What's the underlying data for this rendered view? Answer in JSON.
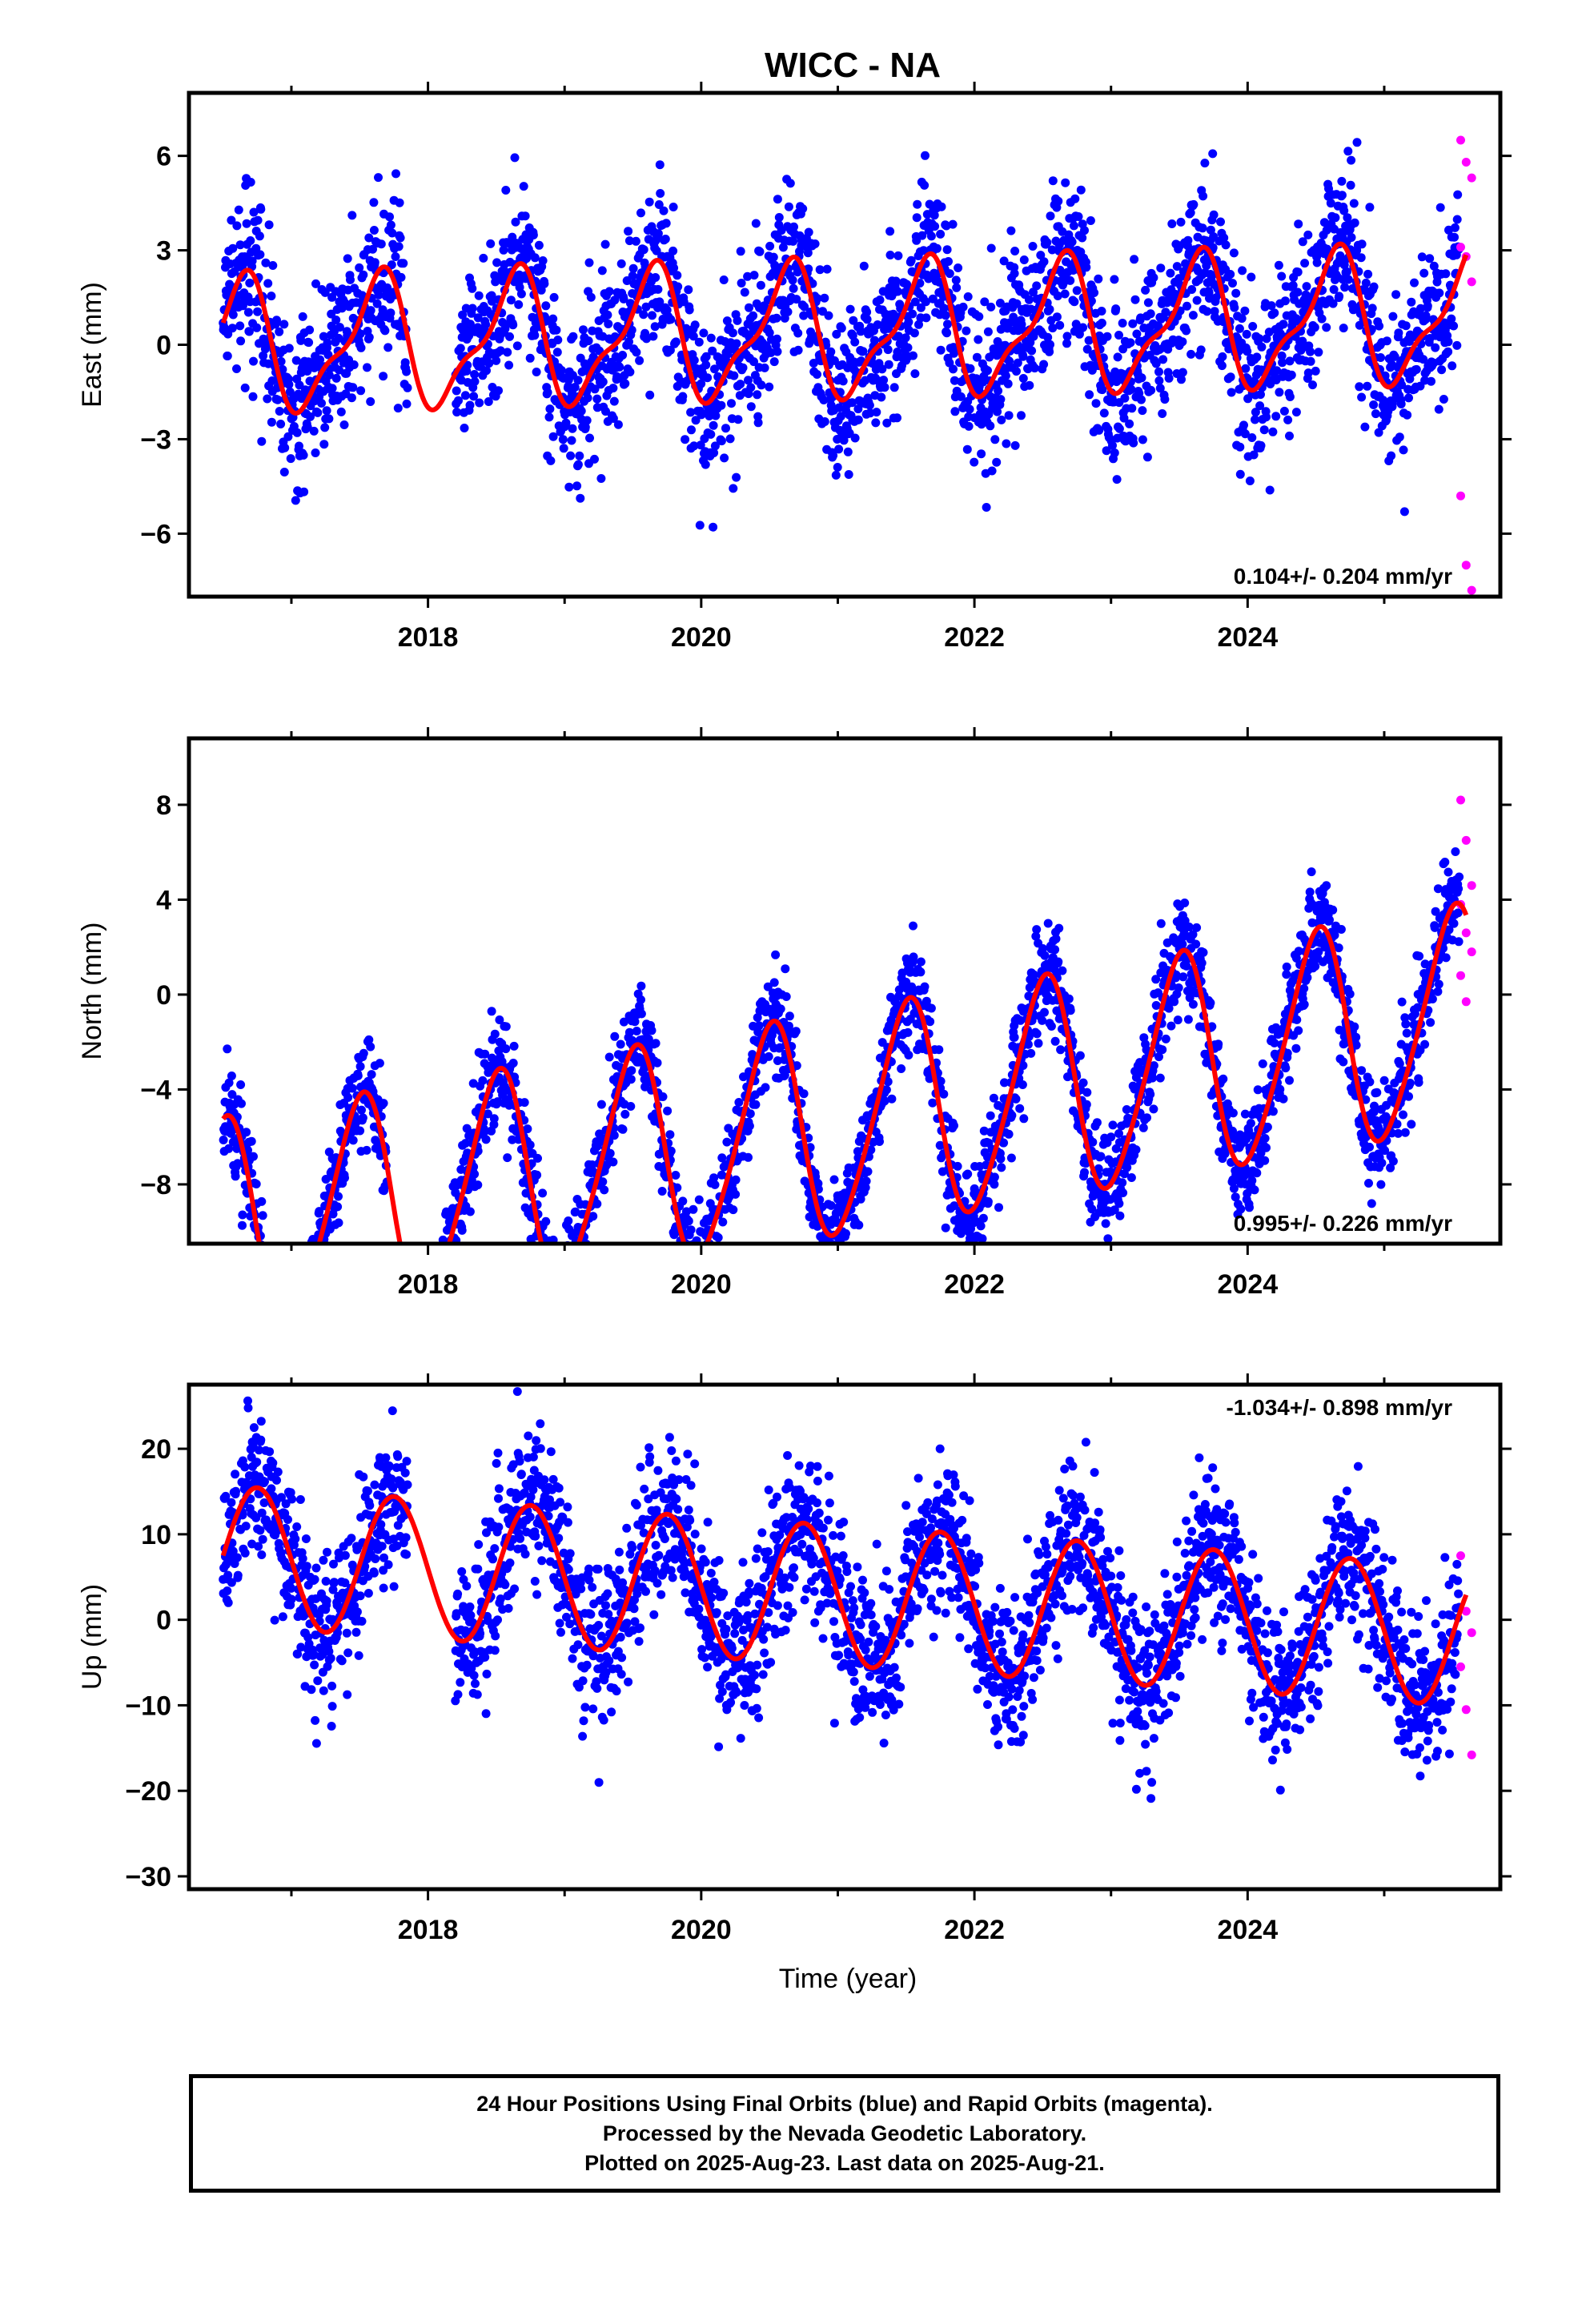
{
  "title": "WICC - NA",
  "xlabel": "Time (year)",
  "colors": {
    "final": "#0000ff",
    "rapid": "#ff00ff",
    "model": "#ff0000"
  },
  "caption": [
    "24 Hour Positions Using Final Orbits (blue) and Rapid Orbits (magenta).",
    "Processed by the Nevada Geodetic Laboratory.",
    "Plotted on 2025-Aug-23. Last data on 2025-Aug-21."
  ],
  "chart_data": [
    {
      "type": "scatter",
      "ylabel": "East (mm)",
      "rate": "0.104+/- 0.204 mm/yr",
      "xlim": [
        2016.25,
        2025.85
      ],
      "ylim": [
        -8,
        8
      ],
      "xticks": [
        2018,
        2020,
        2022,
        2024
      ],
      "yticks": [
        -6,
        -3,
        0,
        3,
        6
      ],
      "ytick_labels": [
        "−6",
        "−3",
        "0",
        "3",
        "6"
      ],
      "grid": false,
      "model": {
        "trend_mm_per_yr": 0.104,
        "offset_mm": 0.4,
        "amp": 1.95,
        "phase_peak": 0.62,
        "amp2": 0.7,
        "noise_sd": 1.3,
        "range_time": [
          2016.5,
          2025.6
        ]
      },
      "series": [
        {
          "kind": "final",
          "x_range": [
            2016.5,
            2025.55
          ],
          "gaps": [
            [
              2017.85,
              2018.2
            ]
          ]
        },
        {
          "kind": "rapid",
          "x_range": [
            2025.56,
            2025.64
          ],
          "values": [
            6.5,
            5.8,
            5.3,
            3.1,
            2.8,
            2.0,
            -4.8,
            -7.0,
            -7.8
          ]
        }
      ]
    },
    {
      "type": "scatter",
      "ylabel": "North (mm)",
      "rate": "0.995+/- 0.226 mm/yr",
      "xlim": [
        2016.25,
        2025.85
      ],
      "ylim": [
        -10.5,
        10.8
      ],
      "xticks": [
        2018,
        2020,
        2022,
        2024
      ],
      "yticks": [
        -8,
        -4,
        0,
        4,
        8
      ],
      "ytick_labels": [
        "−8",
        "−4",
        "0",
        "4",
        "8"
      ],
      "grid": false,
      "model": {
        "trend_mm_per_yr": 0.995,
        "offset_mm": -5.5,
        "amp": 4.6,
        "phase_peak": 0.5,
        "amp2": 0.6,
        "noise_sd": 1.1,
        "range_time": [
          2016.5,
          2025.6
        ]
      },
      "series": [
        {
          "kind": "final",
          "x_range": [
            2016.5,
            2025.55
          ],
          "gaps": [
            [
              2017.7,
              2018.1
            ]
          ]
        },
        {
          "kind": "rapid",
          "x_range": [
            2025.56,
            2025.64
          ],
          "values": [
            8.2,
            6.5,
            4.6,
            3.8,
            2.6,
            1.8,
            0.8,
            -0.3
          ]
        }
      ]
    },
    {
      "type": "scatter",
      "ylabel": "Up (mm)",
      "rate": "-1.034+/- 0.898 mm/yr",
      "xlim": [
        2016.25,
        2025.85
      ],
      "ylim": [
        -31.5,
        27.5
      ],
      "xticks": [
        2018,
        2020,
        2022,
        2024
      ],
      "yticks": [
        -30,
        -20,
        -10,
        0,
        10,
        20
      ],
      "ytick_labels": [
        "−30",
        "−20",
        "−10",
        "0",
        "10",
        "20"
      ],
      "grid": false,
      "model": {
        "trend_mm_per_yr": -1.034,
        "offset_mm": 2.8,
        "amp": 8.2,
        "phase_peak": 0.75,
        "amp2": 0.0,
        "noise_sd": 4.5,
        "range_time": [
          2016.5,
          2025.6
        ]
      },
      "series": [
        {
          "kind": "final",
          "x_range": [
            2016.5,
            2025.55
          ],
          "gaps": [
            [
              2017.85,
              2018.2
            ]
          ]
        },
        {
          "kind": "rapid",
          "x_range": [
            2025.56,
            2025.64
          ],
          "values": [
            7.5,
            1.0,
            -1.5,
            -5.5,
            -10.5,
            -15.8
          ]
        }
      ]
    }
  ]
}
